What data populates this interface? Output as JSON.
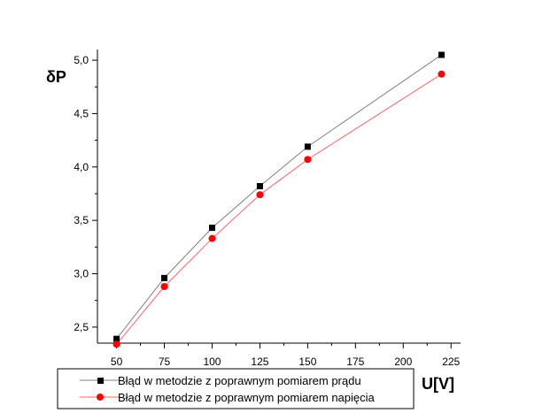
{
  "chart_data": {
    "type": "line",
    "title": "",
    "xlabel": "U[V]",
    "ylabel": "δP",
    "xlim": [
      40,
      230
    ],
    "ylim": [
      2.35,
      5.1
    ],
    "xticks": [
      50,
      75,
      100,
      125,
      150,
      175,
      200,
      225
    ],
    "xtick_labels": [
      "50",
      "75",
      "100",
      "125",
      "150",
      "175",
      "200",
      "225"
    ],
    "yticks": [
      2.5,
      3.0,
      3.5,
      4.0,
      4.5,
      5.0
    ],
    "ytick_labels": [
      "2,5",
      "3,0",
      "3,5",
      "4,0",
      "4,5",
      "5,0"
    ],
    "grid": false,
    "legend_position": "bottom-left",
    "series": [
      {
        "name": "Błąd w metodzie z poprawnym pomiarem prądu",
        "marker": "square",
        "color": "#000000",
        "line_color": "#808080",
        "x": [
          50,
          75,
          100,
          125,
          150,
          220
        ],
        "values": [
          2.39,
          2.96,
          3.43,
          3.82,
          4.19,
          5.05
        ]
      },
      {
        "name": "Błąd w metodzie z poprawnym pomiarem napięcia",
        "marker": "circle",
        "color": "#ff0000",
        "line_color": "#ff6666",
        "x": [
          50,
          75,
          100,
          125,
          150,
          220
        ],
        "values": [
          2.34,
          2.88,
          3.33,
          3.74,
          4.07,
          4.87
        ]
      }
    ]
  }
}
